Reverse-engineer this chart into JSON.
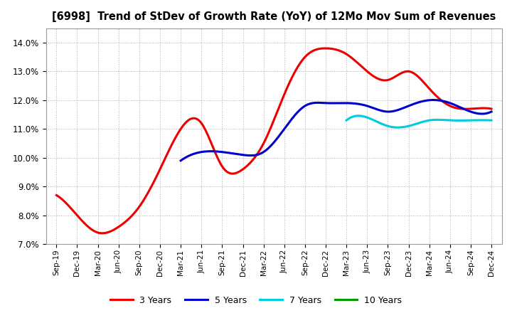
{
  "title": "[6998]  Trend of StDev of Growth Rate (YoY) of 12Mo Mov Sum of Revenues",
  "ylim": [
    0.07,
    0.145
  ],
  "yticks": [
    0.07,
    0.08,
    0.09,
    0.1,
    0.11,
    0.12,
    0.13,
    0.14
  ],
  "background_color": "#ffffff",
  "plot_bg_color": "#ffffff",
  "grid_color": "#b0b0b0",
  "legend_entries": [
    "3 Years",
    "5 Years",
    "7 Years",
    "10 Years"
  ],
  "legend_colors": [
    "#ee0000",
    "#0000cc",
    "#00ccdd",
    "#009900"
  ],
  "x_labels": [
    "Sep-19",
    "Dec-19",
    "Mar-20",
    "Jun-20",
    "Sep-20",
    "Dec-20",
    "Mar-21",
    "Jun-21",
    "Sep-21",
    "Dec-21",
    "Mar-22",
    "Jun-22",
    "Sep-22",
    "Dec-22",
    "Mar-23",
    "Jun-23",
    "Sep-23",
    "Dec-23",
    "Mar-24",
    "Jun-24",
    "Sep-24",
    "Dec-24"
  ],
  "series_3y_x": [
    0,
    1,
    2,
    3,
    4,
    5,
    6,
    7,
    8,
    9,
    10,
    11,
    12,
    13,
    14,
    15,
    16,
    17,
    18,
    19,
    20,
    21
  ],
  "series_3y_y": [
    0.087,
    0.08,
    0.074,
    0.076,
    0.083,
    0.096,
    0.11,
    0.112,
    0.097,
    0.096,
    0.105,
    0.122,
    0.135,
    0.138,
    0.136,
    0.13,
    0.127,
    0.13,
    0.124,
    0.118,
    0.117,
    0.117
  ],
  "series_5y_x": [
    6,
    7,
    8,
    9,
    10,
    11,
    12,
    13,
    14,
    15,
    16,
    17,
    18,
    19,
    20,
    21
  ],
  "series_5y_y": [
    0.099,
    0.102,
    0.102,
    0.101,
    0.102,
    0.11,
    0.118,
    0.119,
    0.119,
    0.118,
    0.116,
    0.118,
    0.12,
    0.119,
    0.116,
    0.116
  ],
  "series_7y_x": [
    14,
    15,
    16,
    17,
    18,
    19,
    20,
    21
  ],
  "series_7y_y": [
    0.113,
    0.114,
    0.111,
    0.111,
    0.113,
    0.113,
    0.113,
    0.113
  ],
  "series_10y_x": [],
  "series_10y_y": [],
  "linewidth": 2.2
}
